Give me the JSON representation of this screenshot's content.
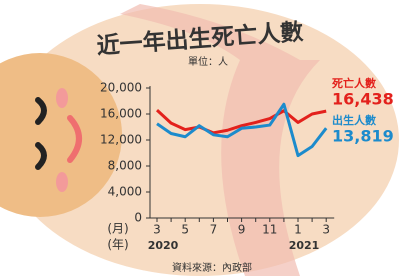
{
  "chart_data": {
    "type": "line",
    "title": "近一年出生死亡人數",
    "unit_label": "單位：人",
    "source": "資料來源：內政部",
    "x_label": "(月)",
    "year_label": "(年)",
    "years": [
      "2020",
      "2021"
    ],
    "categories": [
      "3",
      null,
      "5",
      null,
      "7",
      null,
      "9",
      null,
      "11",
      null,
      "1",
      null,
      "3"
    ],
    "series": [
      {
        "name": "死亡人數",
        "color": "#e3211c",
        "values": [
          16600,
          14600,
          13600,
          14000,
          13100,
          13500,
          14200,
          14700,
          15300,
          16500,
          14700,
          16000,
          16438
        ],
        "value_labels": [
          null,
          null,
          null,
          null,
          null,
          null,
          null,
          null,
          null,
          null,
          null,
          null,
          "16,438"
        ]
      },
      {
        "name": "出生人數",
        "color": "#1c8bcc",
        "values": [
          14500,
          13000,
          12500,
          14200,
          12800,
          12500,
          13800,
          14000,
          14300,
          17500,
          9600,
          11000,
          13819
        ],
        "value_labels": [
          null,
          null,
          null,
          null,
          null,
          null,
          null,
          null,
          null,
          null,
          null,
          null,
          "13,819"
        ]
      }
    ],
    "ylim": [
      0,
      20000
    ],
    "yticks": [
      0,
      {
        "value": 4000,
        "label": "4,000"
      },
      {
        "value": 8000,
        "label": "8,000"
      },
      {
        "value": 12000,
        "label": "12,000"
      },
      {
        "value": 16000,
        "label": "16,000"
      },
      {
        "value": 20000,
        "label": "20,000"
      }
    ],
    "grid": false
  }
}
